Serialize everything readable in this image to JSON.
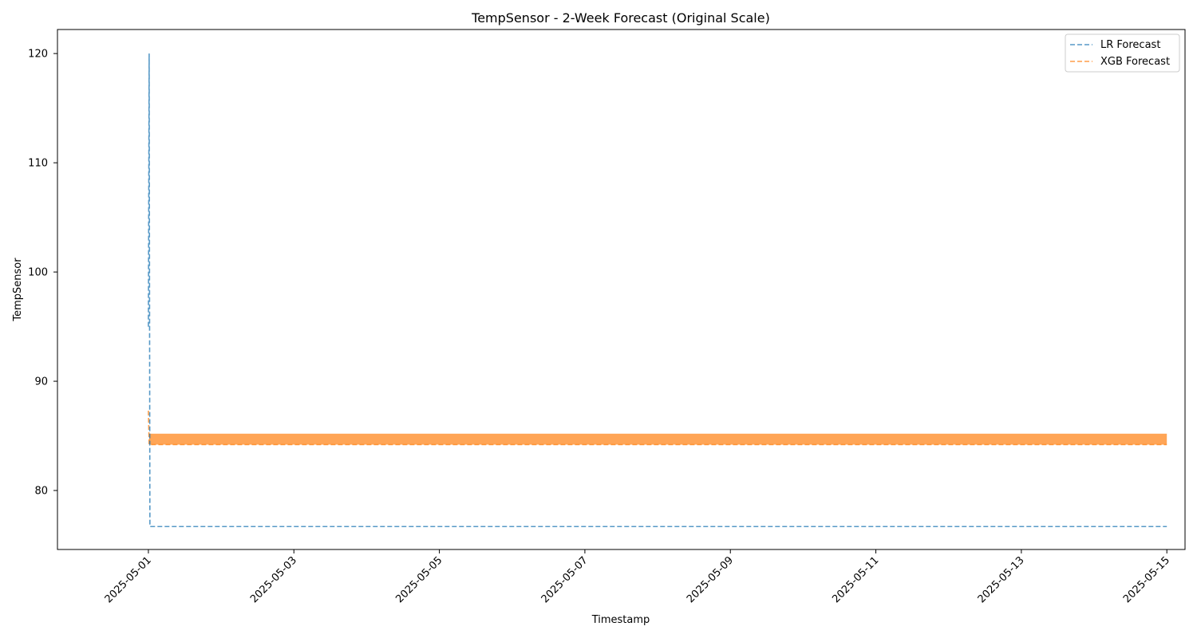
{
  "chart_data": {
    "type": "line",
    "title": "TempSensor - 2-Week Forecast (Original Scale)",
    "xlabel": "Timestamp",
    "ylabel": "TempSensor",
    "xlim": [
      "2025-04-29T18:00",
      "2025-05-15T06:00"
    ],
    "ylim": [
      74.6,
      122.2
    ],
    "x_ticks": [
      "2025-05-01",
      "2025-05-03",
      "2025-05-05",
      "2025-05-07",
      "2025-05-09",
      "2025-05-11",
      "2025-05-13",
      "2025-05-15"
    ],
    "y_ticks": [
      80,
      90,
      100,
      110,
      120
    ],
    "x_tick_rotation": 45,
    "grid": false,
    "legend_position": "top-right",
    "series": [
      {
        "name": "LR Forecast",
        "color": "#1f77b4",
        "style": "dashed",
        "points": [
          {
            "x": "2025-05-01T00:00",
            "y": 95.0
          },
          {
            "x": "2025-05-01T00:15",
            "y": 120.0
          },
          {
            "x": "2025-05-01T00:30",
            "y": 76.7
          },
          {
            "x": "2025-05-15T00:00",
            "y": 76.7
          }
        ]
      },
      {
        "name": "XGB Forecast",
        "color": "#ff7f0e",
        "style": "dashed",
        "points": [
          {
            "x": "2025-05-01T00:00",
            "y": 87.3
          },
          {
            "x": "2025-05-01T00:15",
            "y": 84.2
          },
          {
            "x": "2025-05-15T00:00",
            "y": 84.2
          }
        ],
        "oscillation_band": {
          "from": "2025-05-01T00:15",
          "to": "2025-05-15T00:00",
          "low": 84.2,
          "high": 85.2
        }
      }
    ]
  }
}
